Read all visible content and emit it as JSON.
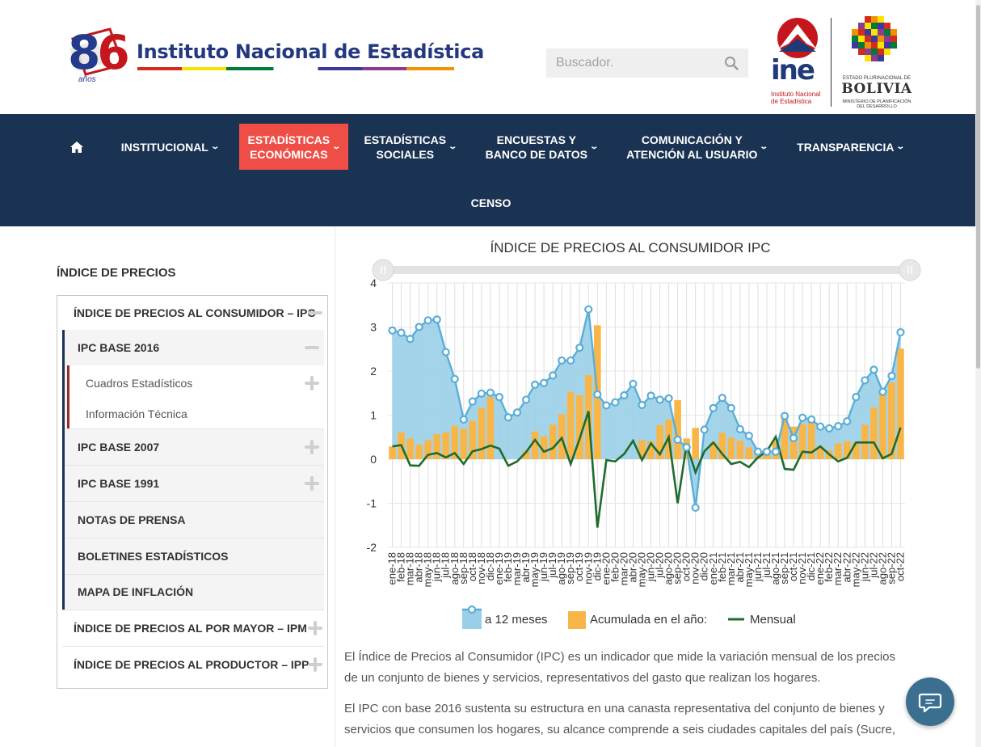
{
  "header": {
    "anniversary_number": "86",
    "anniversary_label": "años",
    "institute_name": "Instituto Nacional de Estadística",
    "search_placeholder": "Buscador.",
    "ine_logo_word": "ine",
    "ine_logo_sub": "Instituto Nacional de Estadística",
    "bolivia_line1": "ESTADO PLURINACIONAL DE",
    "bolivia_line2": "BOLIVIA",
    "bolivia_line3": "MINISTERIO DE PLANIFICACIÓN DEL DESARROLLO"
  },
  "nav": {
    "home_icon": "home-icon",
    "items": [
      {
        "label": "INSTITUCIONAL"
      },
      {
        "label": "ESTADÍSTICAS\nECONÓMICAS"
      },
      {
        "label": "ESTADÍSTICAS\nSOCIALES"
      },
      {
        "label": "ENCUESTAS Y\nBANCO DE DATOS"
      },
      {
        "label": "COMUNICACIÓN Y\nATENCIÓN AL USUARIO"
      },
      {
        "label": "TRANSPARENCIA"
      },
      {
        "label": "CENSO"
      }
    ],
    "active_color": "#ee4e46",
    "bg_color": "#1b3352"
  },
  "sidebar": {
    "title": "ÍNDICE DE PRECIOS",
    "items": [
      {
        "label": "ÍNDICE DE PRECIOS AL CONSUMIDOR – IPC",
        "state": "expanded"
      },
      {
        "label": "IPC BASE 2016",
        "state": "expanded"
      },
      {
        "label": "Cuadros Estadísticos",
        "state": "collapsed"
      },
      {
        "label": "Información Técnica"
      },
      {
        "label": "IPC BASE 2007",
        "state": "collapsed"
      },
      {
        "label": "IPC BASE 1991",
        "state": "collapsed"
      },
      {
        "label": "NOTAS DE PRENSA"
      },
      {
        "label": "BOLETINES ESTADÍSTICOS"
      },
      {
        "label": "MAPA DE INFLACIÓN"
      },
      {
        "label": "ÍNDICE DE PRECIOS AL POR MAYOR – IPM",
        "state": "collapsed"
      },
      {
        "label": "ÍNDICE DE PRECIOS AL PRODUCTOR – IPP",
        "state": "collapsed"
      }
    ]
  },
  "content": {
    "paragraph1": "El Índice de Precios al Consumidor (IPC) es un indicador que mide la variación mensual de los precios de un conjunto de bienes y servicios, representativos del gasto que realizan los hogares.",
    "paragraph2": "El IPC con base 2016 sustenta su estructura en una canasta representativa del conjunto de bienes y servicios que consumen los hogares, su alcance comprende a seis ciudades capitales del país (Sucre,"
  },
  "chart_data": {
    "type": "line",
    "title": "ÍNDICE DE PRECIOS AL CONSUMIDOR IPC",
    "ylim": [
      -2,
      4
    ],
    "yticks": [
      -2,
      -1,
      0,
      1,
      2,
      3,
      4
    ],
    "grid": true,
    "legend_position": "bottom",
    "x": [
      "ene-18",
      "feb-18",
      "mar-18",
      "abr-18",
      "may-18",
      "jun-18",
      "jul-18",
      "ago-18",
      "sep-18",
      "oct-18",
      "nov-18",
      "dic-18",
      "ene-19",
      "feb-19",
      "mar-19",
      "abr-19",
      "may-19",
      "jun-19",
      "jul-19",
      "ago-19",
      "sep-19",
      "oct-19",
      "nov-19",
      "dic-19",
      "ene-20",
      "feb-20",
      "mar-20",
      "abr-20",
      "may-20",
      "jun-20",
      "jul-20",
      "ago-20",
      "sep-20",
      "oct-20",
      "nov-20",
      "dic-20",
      "ene-21",
      "feb-21",
      "mar-21",
      "abr-21",
      "may-21",
      "jun-21",
      "jul-21",
      "ago-21",
      "sep-21",
      "oct-21",
      "nov-21",
      "dic-21",
      "ene-22",
      "feb-22",
      "mar-22",
      "abr-22",
      "may-22",
      "jun-22",
      "jul-22",
      "ago-22",
      "sep-22",
      "oct-22"
    ],
    "series": [
      {
        "name": "a 12 meses",
        "type": "area",
        "color": "#99cfe8",
        "line_color": "#5aaed8",
        "values": [
          2.92,
          2.87,
          2.73,
          3.0,
          3.15,
          3.17,
          2.43,
          1.82,
          0.9,
          1.31,
          1.49,
          1.51,
          1.41,
          0.95,
          1.06,
          1.35,
          1.69,
          1.73,
          1.9,
          2.24,
          2.24,
          2.53,
          3.4,
          1.47,
          1.22,
          1.29,
          1.45,
          1.71,
          1.23,
          1.44,
          1.35,
          1.38,
          0.44,
          0.27,
          -1.1,
          0.67,
          1.16,
          1.39,
          1.16,
          0.68,
          0.53,
          0.17,
          0.17,
          0.17,
          0.98,
          0.48,
          0.94,
          0.9,
          0.74,
          0.7,
          0.75,
          0.86,
          1.41,
          1.79,
          2.03,
          1.53,
          1.89,
          2.88
        ]
      },
      {
        "name": "Acumulada en el año:",
        "type": "bar",
        "color": "#f9b648",
        "values": [
          0.29,
          0.61,
          0.47,
          0.33,
          0.43,
          0.57,
          0.61,
          0.75,
          0.69,
          0.87,
          1.16,
          1.41,
          0.0,
          0.0,
          0.0,
          0.19,
          0.63,
          0.52,
          0.78,
          1.02,
          1.53,
          1.45,
          1.91,
          3.04,
          0.0,
          0.0,
          0.0,
          0.0,
          0.43,
          0.41,
          0.77,
          0.9,
          1.34,
          0.47,
          0.71,
          0.0,
          0.38,
          0.6,
          0.49,
          0.42,
          0.27,
          0.17,
          0.25,
          0.43,
          0.95,
          0.74,
          0.8,
          0.89,
          0.3,
          0.2,
          0.36,
          0.41,
          0.39,
          0.78,
          1.17,
          1.57,
          1.74,
          2.51
        ]
      },
      {
        "name": "Mensual",
        "type": "line",
        "color": "#1f6b2e",
        "values": [
          0.29,
          0.32,
          -0.14,
          -0.15,
          0.1,
          0.14,
          0.04,
          0.14,
          -0.11,
          0.18,
          0.23,
          0.31,
          0.24,
          -0.15,
          -0.05,
          0.16,
          0.44,
          0.17,
          0.25,
          0.48,
          -0.11,
          0.46,
          1.09,
          -1.55,
          -0.02,
          -0.05,
          0.12,
          0.42,
          -0.02,
          0.36,
          0.11,
          0.5,
          -1.0,
          0.33,
          -0.3,
          0.18,
          0.38,
          0.12,
          -0.11,
          -0.06,
          -0.18,
          0.04,
          0.18,
          0.51,
          -0.22,
          -0.24,
          0.17,
          0.15,
          0.29,
          0.11,
          -0.05,
          0.03,
          0.38,
          0.38,
          0.38,
          0.02,
          0.12,
          0.72
        ]
      }
    ]
  }
}
